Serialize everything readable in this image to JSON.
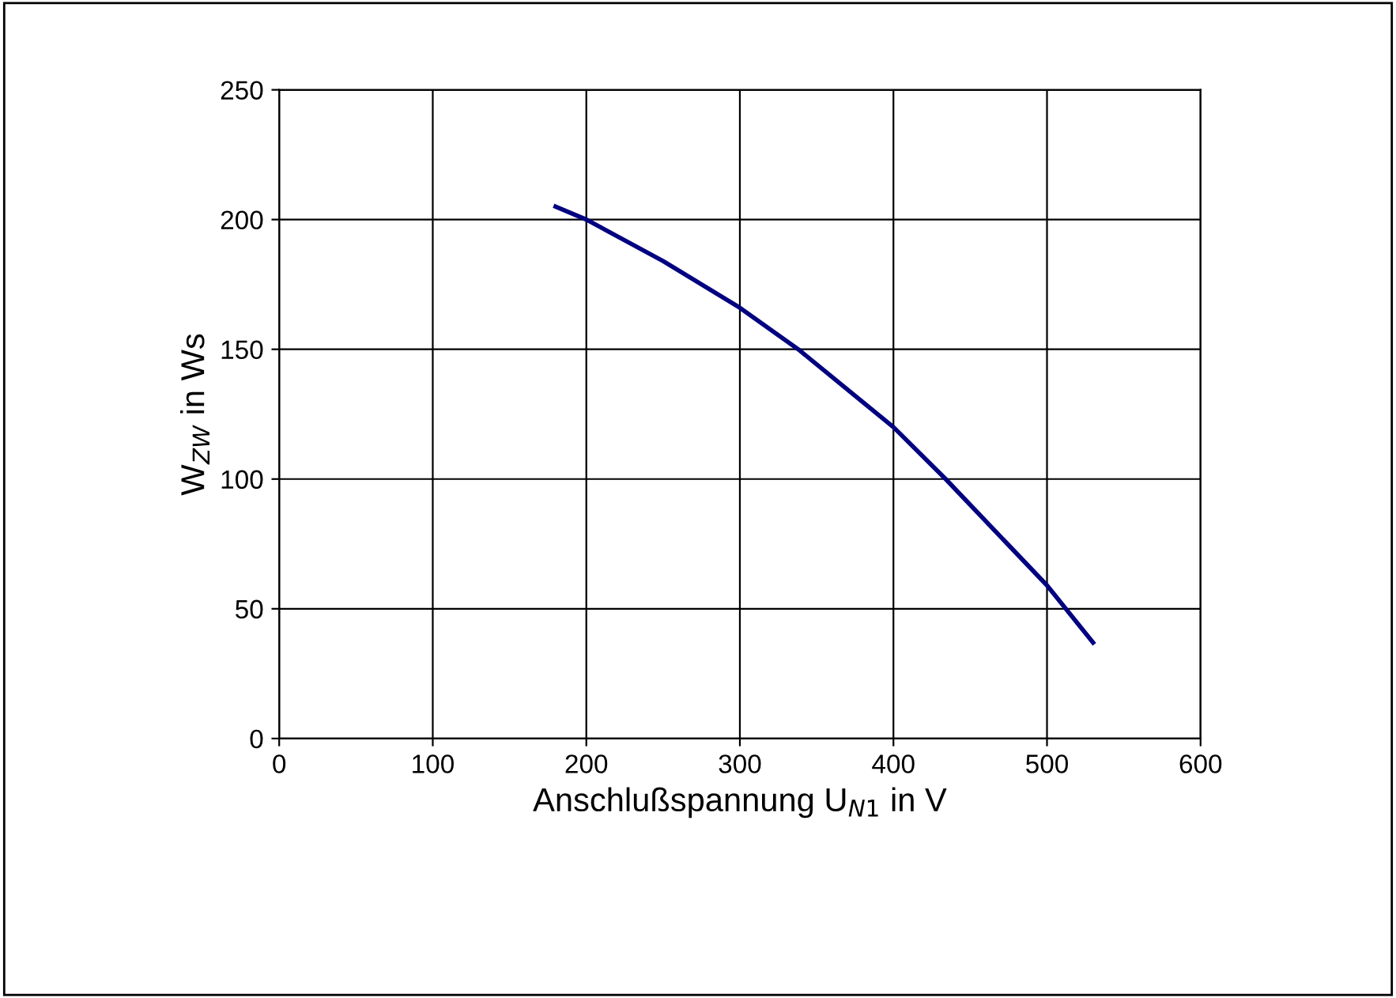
{
  "chart_data": {
    "type": "line",
    "xlabel": "Anschlußspannung U$_{N1}$ in V",
    "ylabel": "W$_{ZW}$ in Ws",
    "series": [
      {
        "color": "#000080",
        "x": [
          180,
          200,
          250,
          300,
          338,
          400,
          434,
          500,
          530
        ],
        "values": [
          205,
          200,
          184,
          166,
          150,
          120,
          100,
          59,
          37
        ]
      }
    ],
    "xlim": [
      0,
      600
    ],
    "xticks": [
      0,
      100,
      200,
      300,
      400,
      500,
      600
    ],
    "ylim": [
      0,
      250
    ],
    "yticks": [
      0,
      50,
      100,
      150,
      200,
      250
    ],
    "grid": true,
    "marker": "none",
    "line_style": "solid"
  }
}
